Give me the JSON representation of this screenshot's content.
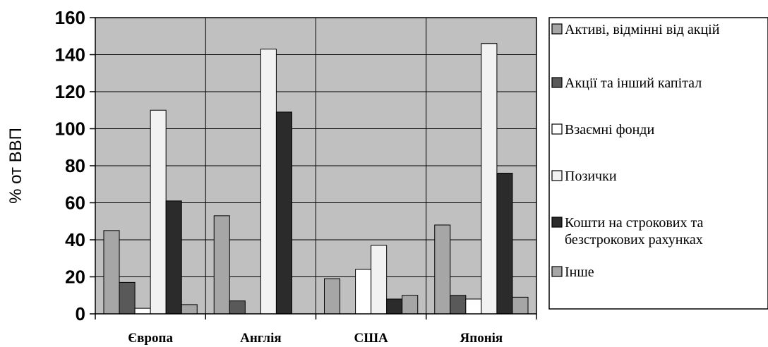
{
  "chart_data": {
    "type": "bar",
    "ylabel": "% от ВВП",
    "ylim": [
      0,
      160
    ],
    "yticks": [
      0,
      20,
      40,
      60,
      80,
      100,
      120,
      140,
      160
    ],
    "categories": [
      "Європа",
      "Англія",
      "США",
      "Японія"
    ],
    "grid": "vertical and horizontal",
    "legend_position": "right",
    "plot_background": "#c0c0c0",
    "series": [
      {
        "name": "Активі, відмінні від акцій",
        "color": "#a6a6a6",
        "values": [
          45,
          53,
          19,
          48
        ]
      },
      {
        "name": "Акції та інший капітал",
        "color": "#595959",
        "values": [
          17,
          7,
          0,
          10
        ]
      },
      {
        "name": "Взаємні фонди",
        "color": "#ffffff",
        "values": [
          3,
          0,
          24,
          8
        ]
      },
      {
        "name": "Позички",
        "color": "#f2f2f2",
        "values": [
          110,
          143,
          37,
          146
        ]
      },
      {
        "name": "Кошти на строкових та безстрокових рахунках",
        "name_lines": [
          "Кошти на строкових та",
          "безстрокових рахунках"
        ],
        "color": "#2b2b2b",
        "values": [
          61,
          109,
          8,
          76
        ]
      },
      {
        "name": "Інше",
        "color": "#a6a6a6",
        "values": [
          5,
          0,
          10,
          9
        ]
      }
    ]
  }
}
